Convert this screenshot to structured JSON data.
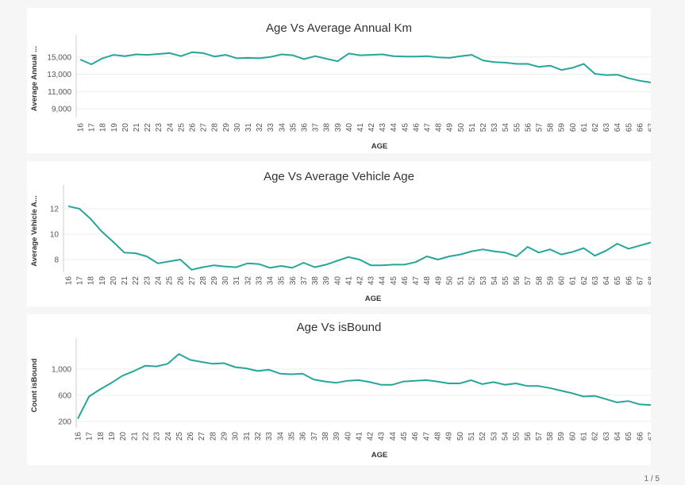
{
  "pagination": "1 / 5",
  "chart_data": [
    {
      "type": "line",
      "title": "Age Vs Average Annual Km",
      "xlabel": "AGE",
      "ylabel": "Average Annual ...",
      "ylim": [
        8000,
        17000
      ],
      "yticks": [
        9000,
        11000,
        13000,
        15000
      ],
      "ytick_labels": [
        "9,000",
        "11,000",
        "13,000",
        "15,000"
      ],
      "grid": true,
      "x": [
        16,
        17,
        18,
        19,
        20,
        21,
        22,
        23,
        24,
        25,
        26,
        27,
        28,
        29,
        30,
        31,
        32,
        33,
        34,
        35,
        36,
        37,
        38,
        39,
        40,
        41,
        42,
        43,
        44,
        45,
        46,
        47,
        48,
        49,
        50,
        51,
        52,
        53,
        54,
        55,
        56,
        57,
        58,
        59,
        60,
        61,
        62,
        63,
        64,
        65,
        66,
        67
      ],
      "xtick_labels": [
        "16",
        "17",
        "18",
        "19",
        "20",
        "21",
        "22",
        "23",
        "24",
        "25",
        "26",
        "27",
        "28",
        "29",
        "30",
        "31",
        "32",
        "33",
        "34",
        "35",
        "36",
        "37",
        "38",
        "39",
        "40",
        "41",
        "42",
        "43",
        "44",
        "45",
        "46",
        "47",
        "48",
        "49",
        "50",
        "51",
        "52",
        "53",
        "54",
        "55",
        "56",
        "57",
        "58",
        "59",
        "60",
        "61",
        "62",
        "63",
        "64",
        "65",
        "66",
        "67"
      ],
      "series": [
        {
          "values": [
            14700,
            14150,
            14850,
            15250,
            15100,
            15300,
            15250,
            15350,
            15450,
            15100,
            15550,
            15450,
            15050,
            15250,
            14850,
            14900,
            14850,
            15000,
            15300,
            15200,
            14750,
            15100,
            14800,
            14500,
            15400,
            15200,
            15250,
            15300,
            15100,
            15050,
            15050,
            15100,
            14950,
            14900,
            15100,
            15250,
            14600,
            14400,
            14350,
            14200,
            14200,
            13850,
            14000,
            13500,
            13750,
            14200,
            13050,
            12900,
            12950,
            12550,
            12250,
            12050
          ]
        }
      ]
    },
    {
      "type": "line",
      "title": "Age Vs Average Vehicle Age",
      "xlabel": "AGE",
      "ylabel": "Average Vehicle A...",
      "ylim": [
        7,
        13.5
      ],
      "yticks": [
        8,
        10,
        12
      ],
      "ytick_labels": [
        "8",
        "10",
        "12"
      ],
      "grid": true,
      "x": [
        16,
        17,
        18,
        19,
        20,
        21,
        22,
        23,
        24,
        25,
        26,
        27,
        28,
        29,
        30,
        31,
        32,
        33,
        34,
        35,
        36,
        37,
        38,
        39,
        40,
        41,
        42,
        43,
        44,
        45,
        46,
        47,
        48,
        49,
        50,
        51,
        52,
        53,
        54,
        55,
        56,
        57,
        58,
        59,
        60,
        61,
        62,
        63,
        64,
        65,
        66,
        67,
        68
      ],
      "xtick_labels": [
        "16",
        "17",
        "18",
        "19",
        "20",
        "21",
        "22",
        "23",
        "24",
        "25",
        "26",
        "27",
        "28",
        "29",
        "30",
        "31",
        "32",
        "33",
        "34",
        "35",
        "36",
        "37",
        "38",
        "39",
        "40",
        "41",
        "42",
        "43",
        "44",
        "45",
        "46",
        "47",
        "48",
        "49",
        "50",
        "51",
        "52",
        "53",
        "54",
        "55",
        "56",
        "57",
        "58",
        "59",
        "60",
        "61",
        "62",
        "63",
        "64",
        "65",
        "66",
        "67",
        "68"
      ],
      "series": [
        {
          "values": [
            12.2,
            12.0,
            11.2,
            10.2,
            9.4,
            8.55,
            8.5,
            8.25,
            7.7,
            7.85,
            8.0,
            7.2,
            7.4,
            7.55,
            7.45,
            7.4,
            7.7,
            7.65,
            7.35,
            7.5,
            7.35,
            7.75,
            7.4,
            7.6,
            7.9,
            8.2,
            8.0,
            7.55,
            7.55,
            7.6,
            7.6,
            7.8,
            8.25,
            8.0,
            8.25,
            8.4,
            8.65,
            8.8,
            8.65,
            8.55,
            8.25,
            9.0,
            8.55,
            8.8,
            8.4,
            8.6,
            8.9,
            8.3,
            8.7,
            9.25,
            8.85,
            9.1,
            9.35
          ]
        }
      ]
    },
    {
      "type": "line",
      "title": "Age Vs isBound",
      "xlabel": "AGE",
      "ylabel": "Count isBound",
      "ylim": [
        100,
        1400
      ],
      "yticks": [
        200,
        600,
        1000
      ],
      "ytick_labels": [
        "200",
        "600",
        "1,000"
      ],
      "grid": true,
      "x": [
        16,
        17,
        18,
        19,
        20,
        21,
        22,
        23,
        24,
        25,
        26,
        27,
        28,
        29,
        30,
        31,
        32,
        33,
        34,
        35,
        36,
        37,
        38,
        39,
        40,
        41,
        42,
        43,
        44,
        45,
        46,
        47,
        48,
        49,
        50,
        51,
        52,
        53,
        54,
        55,
        56,
        57,
        58,
        59,
        60,
        61,
        62,
        63,
        64,
        65,
        66,
        67
      ],
      "xtick_labels": [
        "16",
        "17",
        "18",
        "19",
        "20",
        "21",
        "22",
        "23",
        "24",
        "25",
        "26",
        "27",
        "28",
        "29",
        "30",
        "31",
        "32",
        "33",
        "34",
        "35",
        "36",
        "37",
        "38",
        "39",
        "40",
        "41",
        "42",
        "43",
        "44",
        "45",
        "46",
        "47",
        "48",
        "49",
        "50",
        "51",
        "52",
        "53",
        "54",
        "55",
        "56",
        "57",
        "58",
        "59",
        "60",
        "61",
        "62",
        "63",
        "64",
        "65",
        "66",
        "67"
      ],
      "series": [
        {
          "values": [
            240,
            580,
            690,
            790,
            900,
            970,
            1050,
            1040,
            1080,
            1230,
            1140,
            1110,
            1080,
            1090,
            1030,
            1010,
            970,
            990,
            930,
            920,
            930,
            840,
            810,
            790,
            820,
            830,
            800,
            760,
            760,
            810,
            820,
            830,
            810,
            780,
            780,
            830,
            770,
            800,
            760,
            780,
            740,
            740,
            710,
            670,
            630,
            580,
            590,
            540,
            490,
            510,
            460,
            450
          ]
        }
      ]
    }
  ]
}
